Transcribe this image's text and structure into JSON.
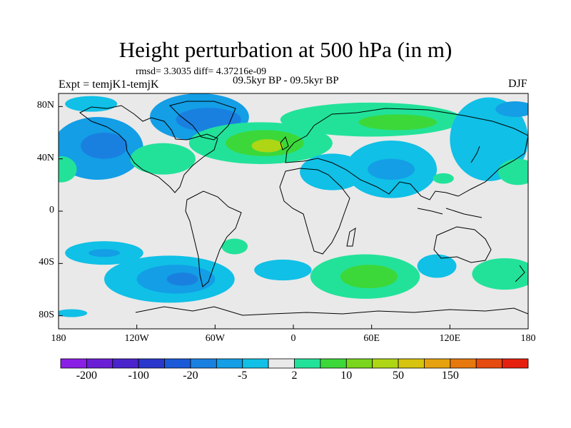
{
  "title": "Height perturbation at 500 hPa (in m)",
  "stats": "rmsd= 3.3035 diff= 4.37216e-09",
  "expt": "Expt = temjK1-temjK",
  "period": "09.5kyr BP - 09.5kyr BP",
  "season": "DJF",
  "lat_labels": [
    "80N",
    "40N",
    "0",
    "40S",
    "80S"
  ],
  "lon_labels": [
    "180",
    "120W",
    "60W",
    "0",
    "60E",
    "120E",
    "180"
  ],
  "colorbar": {
    "colors": [
      "#8a1fe6",
      "#6a1fd6",
      "#4a23cc",
      "#2a37cc",
      "#1a5ad8",
      "#1a80e0",
      "#139ee6",
      "#10c0e6",
      "#e9e9e9",
      "#22e29a",
      "#3cd83a",
      "#7ad61c",
      "#aed614",
      "#d6c40e",
      "#e6a20e",
      "#e6780e",
      "#e64a0e",
      "#e6200e"
    ],
    "labels": [
      "-200",
      "-100",
      "-20",
      "-5",
      "2",
      "10",
      "50",
      "150"
    ]
  },
  "map": {
    "background": "#e9e9e9",
    "blobs": [
      {
        "color": "#139ee6",
        "cx": -150,
        "cy": 48,
        "rx": 35,
        "ry": 24
      },
      {
        "color": "#1a80e0",
        "cx": -145,
        "cy": 50,
        "rx": 18,
        "ry": 10
      },
      {
        "color": "#10c0e6",
        "cx": -155,
        "cy": 82,
        "rx": 20,
        "ry": 6
      },
      {
        "color": "#139ee6",
        "cx": -72,
        "cy": 72,
        "rx": 38,
        "ry": 18
      },
      {
        "color": "#1a80e0",
        "cx": -65,
        "cy": 70,
        "rx": 25,
        "ry": 9
      },
      {
        "color": "#22e29a",
        "cx": -100,
        "cy": 40,
        "rx": 25,
        "ry": 12
      },
      {
        "color": "#22e29a",
        "cx": -25,
        "cy": 52,
        "rx": 55,
        "ry": 16
      },
      {
        "color": "#3cd83a",
        "cx": -22,
        "cy": 52,
        "rx": 30,
        "ry": 10
      },
      {
        "color": "#aed614",
        "cx": -20,
        "cy": 50,
        "rx": 12,
        "ry": 5
      },
      {
        "color": "#22e29a",
        "cx": 60,
        "cy": 70,
        "rx": 70,
        "ry": 13
      },
      {
        "color": "#3cd83a",
        "cx": 80,
        "cy": 68,
        "rx": 30,
        "ry": 6
      },
      {
        "color": "#10c0e6",
        "cx": 30,
        "cy": 30,
        "rx": 25,
        "ry": 14
      },
      {
        "color": "#10c0e6",
        "cx": 75,
        "cy": 32,
        "rx": 35,
        "ry": 22
      },
      {
        "color": "#139ee6",
        "cx": 75,
        "cy": 32,
        "rx": 18,
        "ry": 8
      },
      {
        "color": "#10c0e6",
        "cx": 150,
        "cy": 55,
        "rx": 30,
        "ry": 32
      },
      {
        "color": "#139ee6",
        "cx": 170,
        "cy": 78,
        "rx": 15,
        "ry": 6
      },
      {
        "color": "#22e29a",
        "cx": 115,
        "cy": 25,
        "rx": 8,
        "ry": 4
      },
      {
        "color": "#22e29a",
        "cx": 172,
        "cy": 30,
        "rx": 15,
        "ry": 10
      },
      {
        "color": "#22e29a",
        "cx": -178,
        "cy": 32,
        "rx": 12,
        "ry": 10
      },
      {
        "color": "#10c0e6",
        "cx": -145,
        "cy": -32,
        "rx": 30,
        "ry": 9
      },
      {
        "color": "#139ee6",
        "cx": -145,
        "cy": -32,
        "rx": 12,
        "ry": 3
      },
      {
        "color": "#22e29a",
        "cx": -45,
        "cy": -27,
        "rx": 10,
        "ry": 6
      },
      {
        "color": "#10c0e6",
        "cx": -95,
        "cy": -52,
        "rx": 50,
        "ry": 18
      },
      {
        "color": "#139ee6",
        "cx": -90,
        "cy": -52,
        "rx": 30,
        "ry": 11
      },
      {
        "color": "#1a80e0",
        "cx": -85,
        "cy": -52,
        "rx": 12,
        "ry": 5
      },
      {
        "color": "#10c0e6",
        "cx": -8,
        "cy": -45,
        "rx": 22,
        "ry": 8
      },
      {
        "color": "#22e29a",
        "cx": 55,
        "cy": -50,
        "rx": 42,
        "ry": 17
      },
      {
        "color": "#3cd83a",
        "cx": 58,
        "cy": -50,
        "rx": 22,
        "ry": 9
      },
      {
        "color": "#10c0e6",
        "cx": 110,
        "cy": -42,
        "rx": 15,
        "ry": 9
      },
      {
        "color": "#22e29a",
        "cx": 162,
        "cy": -48,
        "rx": 25,
        "ry": 12
      },
      {
        "color": "#10c0e6",
        "cx": -170,
        "cy": -78,
        "rx": 12,
        "ry": 3
      }
    ]
  }
}
